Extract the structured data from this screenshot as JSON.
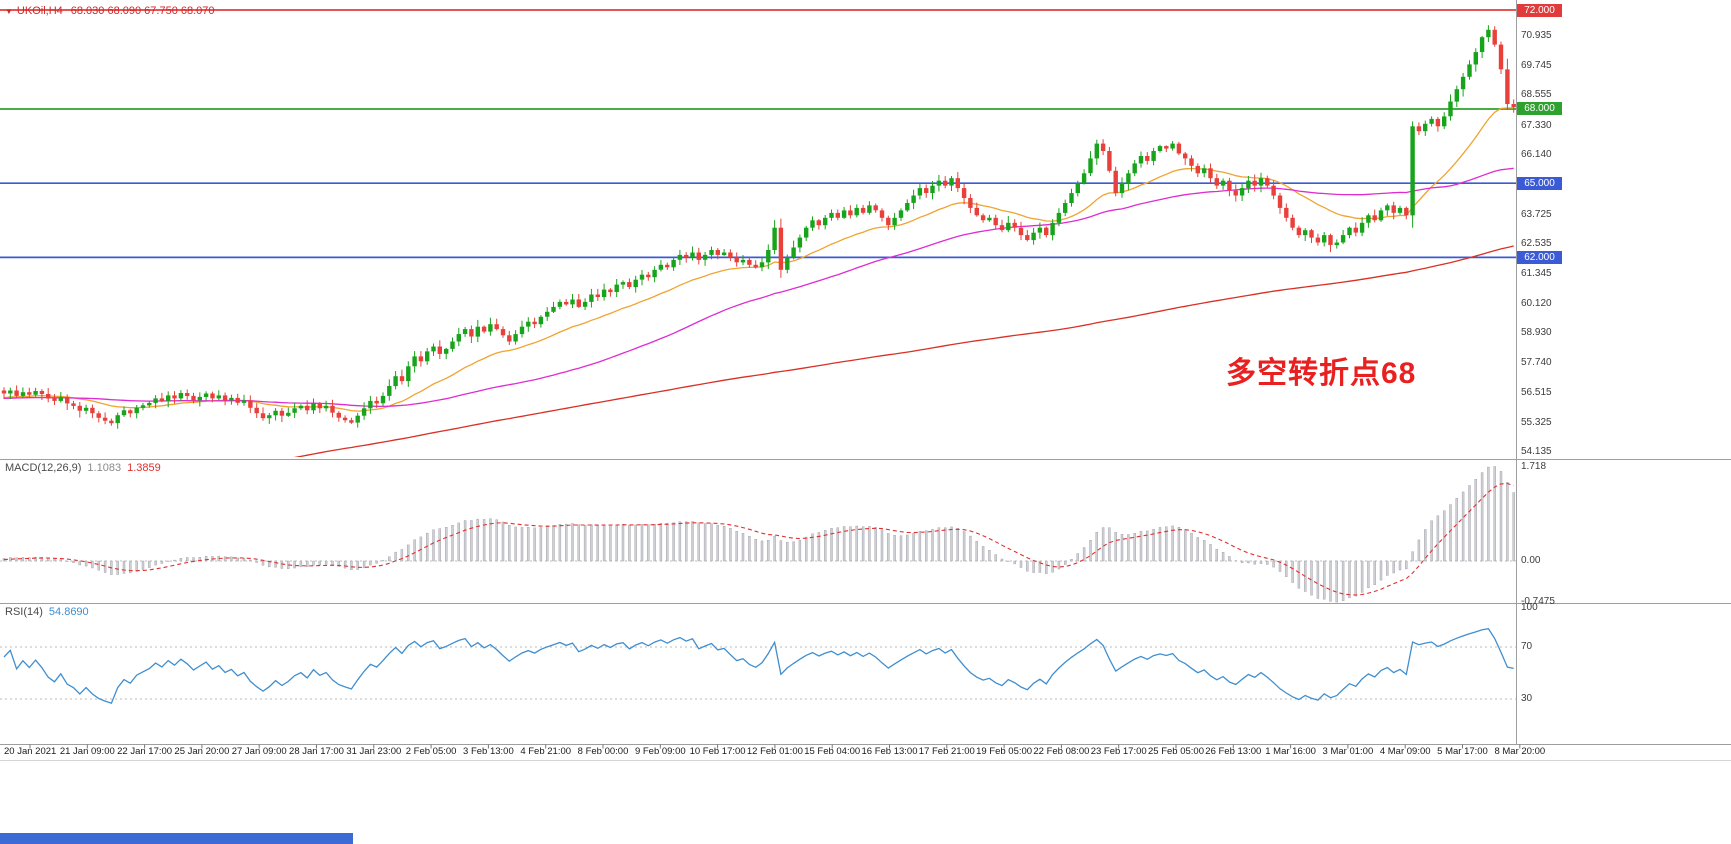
{
  "header": {
    "marker": "▼",
    "title": "UKOil,H4",
    "ohlc": "68.030 68.090 67.750 68.070"
  },
  "annotation": {
    "text": "多空转折点68"
  },
  "colors": {
    "up": "#18a31c",
    "down": "#e8403a",
    "ma_fast": "#efa431",
    "ma_med": "#dd2dd2",
    "ma_slow": "#d93025",
    "hline_green": "#2ea12e",
    "hline_blue": "#3b5bd6",
    "hline_red": "#e23b3b",
    "rsi": "#3f8ed0",
    "macd_hist": "#cfcfd6",
    "macd_signal": "#e03030",
    "title": "#d22626",
    "annotation": "#e82020",
    "bottom_bar": "#3d6bd6"
  },
  "price_axis": {
    "labels": [
      70.935,
      69.745,
      68.555,
      67.33,
      66.14,
      63.725,
      62.535,
      61.345,
      60.12,
      58.93,
      57.74,
      56.515,
      55.325,
      54.135
    ],
    "badges": [
      {
        "price": 72.0,
        "color_key": "hline_red"
      },
      {
        "price": 68.0,
        "color_key": "hline_green"
      },
      {
        "price": 65.0,
        "color_key": "hline_blue"
      },
      {
        "price": 62.0,
        "color_key": "hline_blue"
      }
    ]
  },
  "hlines": [
    {
      "price": 72.0,
      "color_key": "hline_red"
    },
    {
      "price": 68.0,
      "color_key": "hline_green"
    },
    {
      "price": 65.0,
      "color_key": "hline_blue"
    },
    {
      "price": 62.0,
      "color_key": "hline_blue"
    }
  ],
  "time_axis": {
    "labels": [
      "20 Jan 2021",
      "21 Jan 09:00",
      "22 Jan 17:00",
      "25 Jan 20:00",
      "27 Jan 09:00",
      "28 Jan 17:00",
      "31 Jan 23:00",
      "2 Feb 05:00",
      "3 Feb 13:00",
      "4 Feb 21:00",
      "8 Feb 00:00",
      "9 Feb 09:00",
      "10 Feb 17:00",
      "12 Feb 01:00",
      "15 Feb 04:00",
      "16 Feb 13:00",
      "17 Feb 21:00",
      "19 Feb 05:00",
      "22 Feb 08:00",
      "23 Feb 17:00",
      "25 Feb 05:00",
      "26 Feb 13:00",
      "1 Mar 16:00",
      "3 Mar 01:00",
      "4 Mar 09:00",
      "5 Mar 17:00",
      "8 Mar 20:00"
    ]
  },
  "macd_panel": {
    "name": "MACD(12,26,9)",
    "main_value": "1.1083",
    "signal_value": "1.3859",
    "axis": [
      {
        "text": "1.718",
        "value": 1.718
      },
      {
        "text": "0.00",
        "value": 0
      },
      {
        "text": "-0.7475",
        "value": -0.7475
      }
    ]
  },
  "rsi_panel": {
    "name": "RSI(14)",
    "value": "54.8690",
    "period": 14,
    "levels": [
      70,
      30
    ],
    "axis": [
      {
        "text": "100",
        "value": 100
      },
      {
        "text": "70",
        "value": 70
      },
      {
        "text": "30",
        "value": 30
      }
    ]
  },
  "chart_data": {
    "type": "candlestick",
    "symbol": "UKOil",
    "timeframe": "H4",
    "current_bar": {
      "open": 68.03,
      "high": 68.09,
      "low": 67.75,
      "close": 68.07
    },
    "price_range": [
      54.135,
      72.0
    ],
    "x_range": [
      "20 Jan 2021",
      "8 Mar 20:00"
    ],
    "closes": [
      56.5,
      56.62,
      56.4,
      56.55,
      56.45,
      56.6,
      56.48,
      56.3,
      56.2,
      56.35,
      56.1,
      56.0,
      55.8,
      55.92,
      55.7,
      55.52,
      55.4,
      55.3,
      55.62,
      55.82,
      55.7,
      55.92,
      56.02,
      56.12,
      56.3,
      56.2,
      56.42,
      56.3,
      56.52,
      56.4,
      56.22,
      56.36,
      56.5,
      56.3,
      56.42,
      56.22,
      56.32,
      56.12,
      56.22,
      55.92,
      55.7,
      55.5,
      55.62,
      55.8,
      55.6,
      55.72,
      55.9,
      56.0,
      55.82,
      56.1,
      55.9,
      56.0,
      55.72,
      55.52,
      55.42,
      55.32,
      55.6,
      55.9,
      56.2,
      56.1,
      56.4,
      56.8,
      57.2,
      57.0,
      57.6,
      58.0,
      57.8,
      58.2,
      58.4,
      58.1,
      58.3,
      58.6,
      58.9,
      59.1,
      58.8,
      59.2,
      59.0,
      59.3,
      59.1,
      58.85,
      58.6,
      58.9,
      59.2,
      59.4,
      59.3,
      59.6,
      59.8,
      60.0,
      60.2,
      60.1,
      60.3,
      60.0,
      60.2,
      60.5,
      60.4,
      60.7,
      60.6,
      60.9,
      61.0,
      60.8,
      61.1,
      61.3,
      61.2,
      61.5,
      61.7,
      61.6,
      61.9,
      62.1,
      62.0,
      62.2,
      61.9,
      62.1,
      62.3,
      62.1,
      62.2,
      62.0,
      61.8,
      61.9,
      61.7,
      61.6,
      61.8,
      62.3,
      63.2,
      61.5,
      62.0,
      62.4,
      62.8,
      63.2,
      63.5,
      63.3,
      63.6,
      63.8,
      63.6,
      63.9,
      63.7,
      64.0,
      63.8,
      64.1,
      63.9,
      63.6,
      63.3,
      63.6,
      63.9,
      64.2,
      64.5,
      64.8,
      64.6,
      64.9,
      65.1,
      64.9,
      65.2,
      64.8,
      64.4,
      64.0,
      63.7,
      63.5,
      63.6,
      63.3,
      63.1,
      63.4,
      63.2,
      62.9,
      62.7,
      63.0,
      63.2,
      62.9,
      63.4,
      63.8,
      64.2,
      64.6,
      65.0,
      65.4,
      66.0,
      66.6,
      66.3,
      65.5,
      64.6,
      65.0,
      65.4,
      65.8,
      66.1,
      65.9,
      66.3,
      66.5,
      66.4,
      66.6,
      66.2,
      66.0,
      65.7,
      65.4,
      65.6,
      65.2,
      64.9,
      65.1,
      64.7,
      64.5,
      64.8,
      65.1,
      64.9,
      65.2,
      64.9,
      64.5,
      64.0,
      63.6,
      63.2,
      62.9,
      63.1,
      62.8,
      62.6,
      62.9,
      62.5,
      62.6,
      62.9,
      63.2,
      63.0,
      63.4,
      63.7,
      63.5,
      63.9,
      64.1,
      63.8,
      64.0,
      63.7,
      67.3,
      67.1,
      67.4,
      67.6,
      67.3,
      67.7,
      68.3,
      68.8,
      69.3,
      69.8,
      70.3,
      70.9,
      71.2,
      70.6,
      69.6,
      68.2,
      68.07
    ],
    "indicators": {
      "macd": {
        "fast": 12,
        "slow": 26,
        "signal": 9
      },
      "rsi": {
        "period": 14
      },
      "moving_averages": [
        {
          "period": 21,
          "type": "ema",
          "color_key": "ma_fast"
        },
        {
          "period": 55,
          "type": "sma",
          "color_key": "ma_med"
        },
        {
          "period": 200,
          "type": "sma",
          "color_key": "ma_slow"
        }
      ]
    }
  }
}
